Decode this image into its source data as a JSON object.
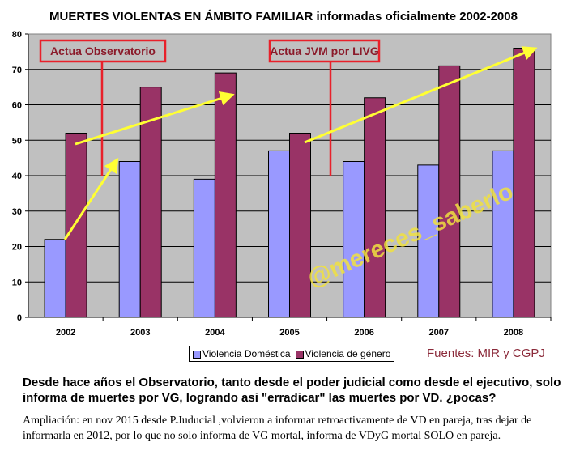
{
  "chart_data": {
    "type": "bar",
    "title": "MUERTES VIOLENTAS EN ÁMBITO FAMILIAR informadas oficialmente 2002-2008",
    "categories": [
      "2002",
      "2003",
      "2004",
      "2005",
      "2006",
      "2007",
      "2008"
    ],
    "series": [
      {
        "name": "Violencia Doméstica",
        "color": "#9999ff",
        "values": [
          22,
          44,
          39,
          47,
          44,
          43,
          47
        ]
      },
      {
        "name": "Violencia de género",
        "color": "#993366",
        "values": [
          52,
          65,
          69,
          52,
          62,
          71,
          76
        ]
      }
    ],
    "ylim": [
      0,
      80
    ],
    "yticks": [
      "0",
      "10",
      "20",
      "30",
      "40",
      "50",
      "60",
      "70",
      "80"
    ],
    "grid": true,
    "legend": "bottom",
    "plot_background": "#c0c0c0",
    "annotations": [
      "Actua Observatorio",
      "Actua JVM por LIVG"
    ],
    "source": "Fuentes: MIR y CGPJ",
    "watermark": "@mereces_saberlo"
  },
  "notes": {
    "main": "Desde hace años el Observatorio, tanto desde el poder judicial como desde el ejecutivo, solo informa de muertes por VG, logrando asi \"erradicar\" las muertes por VD. ¿pocas?",
    "extension": "Ampliación: en nov 2015 desde P.Juducial ,volvieron a informar retroactivamente de VD en pareja, tras dejar de informarla en 2012, por lo que no solo informa de VG mortal, informa de VDyG mortal SOLO en pareja."
  }
}
